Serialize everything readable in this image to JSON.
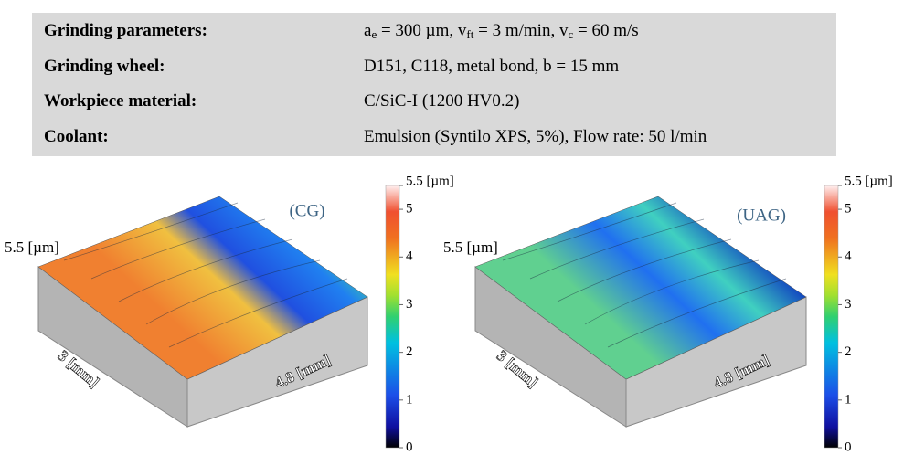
{
  "table": {
    "rows": [
      {
        "label": "Grinding parameters:",
        "value": [
          {
            "text": "a"
          },
          {
            "sub": "e"
          },
          {
            "text": " = 300 µm, v"
          },
          {
            "sub": "ft"
          },
          {
            "text": " = 3 m/min, v"
          },
          {
            "sub": "c"
          },
          {
            "text": " = 60 m/s"
          }
        ]
      },
      {
        "label": "Grinding wheel:",
        "value": [
          {
            "text": "D151, C118, metal bond, b = 15 mm"
          }
        ]
      },
      {
        "label": "Workpiece material:",
        "value": [
          {
            "text": "C/SiC-I (1200 HV0.2)"
          }
        ]
      },
      {
        "label": "Coolant:",
        "value": [
          {
            "text": "Emulsion (Syntilo XPS, 5%), Flow rate: 50 l/min"
          }
        ]
      }
    ]
  },
  "plots": [
    {
      "label": "(CG)",
      "z_axis_label": "5.5 [µm]",
      "x_axis_label": "3 [mm]",
      "y_axis_label": "4.8 [mm]",
      "colorbar": {
        "range": [
          0,
          5.5
        ],
        "ticks": [
          0,
          1,
          2,
          3,
          4,
          5,
          {
            "value": 5.5,
            "label": "5.5 [µm]"
          }
        ]
      }
    },
    {
      "label": "(UAG)",
      "z_axis_label": "5.5 [µm]",
      "x_axis_label": "3 [mm]",
      "y_axis_label": "4.8 [mm]",
      "colorbar": {
        "range": [
          0,
          5.5
        ],
        "ticks": [
          0,
          1,
          2,
          3,
          4,
          5,
          {
            "value": 5.5,
            "label": "5.5 [µm]"
          }
        ]
      }
    }
  ]
}
